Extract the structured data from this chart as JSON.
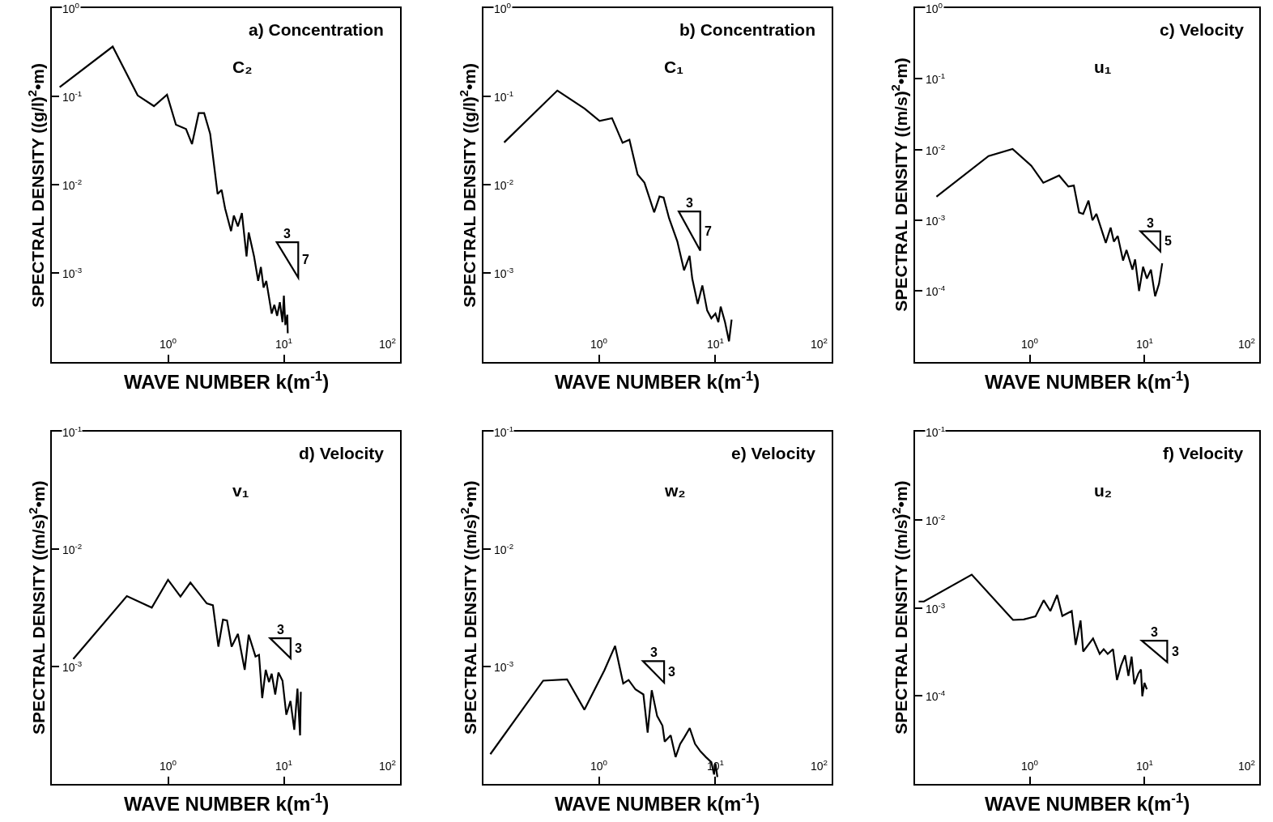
{
  "chart_data": [
    {
      "type": "line",
      "title": "a) Concentration",
      "subtitle": "C₂",
      "xlabel": "WAVE NUMBER k(m$^{-1}$)",
      "ylabel": "SPECTRAL DENSITY ((g/l)$^{2}$•m)",
      "log": "xy",
      "grid": false,
      "annotations": [
        "3",
        "7"
      ],
      "xlim": [
        0.1,
        100
      ],
      "xticks": [
        {
          "value": 1,
          "label": "10$^{0}$"
        },
        {
          "value": 10,
          "label": "10$^{1}$"
        },
        {
          "value": 100,
          "label": "10$^{2}$"
        }
      ],
      "ylim": [
        0.0001,
        1
      ],
      "yticks": [
        {
          "value": 1,
          "label": "10$^{0}$"
        },
        {
          "value": 0.1,
          "label": "10$^{-1}$"
        },
        {
          "value": 0.01,
          "label": "10$^{-2}$"
        },
        {
          "value": 0.001,
          "label": "10$^{-3}$"
        }
      ],
      "series": [
        {
          "color": "#000000",
          "x": [
            0.116,
            0.333,
            0.547,
            0.756,
            0.98,
            1.17,
            1.43,
            1.61,
            1.84,
            2.05,
            2.31,
            2.68,
            2.9,
            3.11,
            3.5,
            3.7,
            4.01,
            4.34,
            4.76,
            4.97,
            5.53,
            6.0,
            6.33,
            6.68,
            7.05,
            7.85,
            8.28,
            8.74,
            9.23,
            9.73,
            10.0,
            10.3,
            10.7,
            10.8
          ],
          "values": [
            0.128,
            0.368,
            0.103,
            0.078,
            0.105,
            0.048,
            0.043,
            0.029,
            0.065,
            0.065,
            0.038,
            0.0079,
            0.0088,
            0.0054,
            0.003,
            0.0045,
            0.0034,
            0.0048,
            0.00155,
            0.0029,
            0.00155,
            0.00082,
            0.00118,
            0.00069,
            0.00082,
            0.00035,
            0.00044,
            0.00033,
            0.00047,
            0.00028,
            0.00056,
            0.00026,
            0.00034,
            0.00021
          ]
        }
      ]
    },
    {
      "type": "line",
      "title": "b) Concentration",
      "subtitle": "C₁",
      "xlabel": "WAVE NUMBER k(m$^{-1}$)",
      "ylabel": "SPECTRAL DENSITY ((g/l)$^{2}$•m)",
      "log": "xy",
      "grid": false,
      "annotations": [
        "3",
        "7"
      ],
      "xlim": [
        0.1,
        100
      ],
      "xticks": [
        {
          "value": 1,
          "label": "10$^{0}$"
        },
        {
          "value": 10,
          "label": "10$^{1}$"
        },
        {
          "value": 100,
          "label": "10$^{2}$"
        }
      ],
      "ylim": [
        0.0001,
        1
      ],
      "yticks": [
        {
          "value": 1,
          "label": "10$^{0}$"
        },
        {
          "value": 0.1,
          "label": "10$^{-1}$"
        },
        {
          "value": 0.01,
          "label": "10$^{-2}$"
        },
        {
          "value": 0.001,
          "label": "10$^{-3}$"
        }
      ],
      "series": [
        {
          "color": "#000000",
          "x": [
            0.15,
            0.432,
            0.743,
            1.0,
            1.28,
            1.58,
            1.81,
            2.13,
            2.44,
            2.96,
            3.29,
            3.57,
            3.98,
            4.69,
            5.36,
            5.98,
            6.31,
            7.03,
            7.71,
            8.49,
            9.22,
            10.0,
            10.6,
            11.1,
            12.1,
            13.1,
            13.8
          ],
          "values": [
            0.0303,
            0.117,
            0.073,
            0.053,
            0.057,
            0.03,
            0.0325,
            0.0131,
            0.0106,
            0.0049,
            0.0074,
            0.0072,
            0.0042,
            0.0023,
            0.00108,
            0.00158,
            0.00087,
            0.00045,
            0.00073,
            0.00038,
            0.00031,
            0.00035,
            0.00028,
            0.00042,
            0.00028,
            0.00017,
            0.0003
          ]
        }
      ]
    },
    {
      "type": "line",
      "title": "c) Velocity",
      "subtitle": "u₁",
      "xlabel": "WAVE NUMBER k(m$^{-1}$)",
      "ylabel": "SPECTRAL DENSITY ((m/s)$^{2}$•m)",
      "log": "xy",
      "grid": false,
      "annotations": [
        "3",
        "5"
      ],
      "xlim": [
        0.1,
        100
      ],
      "xticks": [
        {
          "value": 1,
          "label": "10$^{0}$"
        },
        {
          "value": 10,
          "label": "10$^{1}$"
        },
        {
          "value": 100,
          "label": "10$^{2}$"
        }
      ],
      "ylim": [
        1e-05,
        1
      ],
      "yticks": [
        {
          "value": 1,
          "label": "10$^{0}$"
        },
        {
          "value": 0.1,
          "label": "10$^{-1}$"
        },
        {
          "value": 0.01,
          "label": "10$^{-2}$"
        },
        {
          "value": 0.001,
          "label": "10$^{-3}$"
        },
        {
          "value": 0.0001,
          "label": "10$^{-4}$"
        }
      ],
      "series": [
        {
          "color": "#000000",
          "x": [
            0.153,
            0.436,
            0.706,
            1.03,
            1.31,
            1.8,
            2.17,
            2.42,
            2.69,
            2.92,
            3.25,
            3.52,
            3.81,
            4.6,
            5.07,
            5.41,
            5.85,
            6.51,
            6.98,
            7.86,
            8.29,
            8.98,
            9.73,
            10.5,
            11.4,
            12.4,
            13.4,
            14.3
          ],
          "values": [
            0.00216,
            0.0081,
            0.0102,
            0.0059,
            0.0034,
            0.0043,
            0.003,
            0.0031,
            0.00129,
            0.00123,
            0.0019,
            0.001,
            0.00123,
            0.00048,
            0.00079,
            0.0005,
            0.0006,
            0.00027,
            0.00038,
            0.0002,
            0.00028,
            0.0001,
            0.00022,
            0.00015,
            0.0002,
            8.4e-05,
            0.000126,
            0.000246
          ]
        }
      ]
    },
    {
      "type": "line",
      "title": "d) Velocity",
      "subtitle": "v₁",
      "xlabel": "WAVE NUMBER k(m$^{-1}$)",
      "ylabel": "SPECTRAL DENSITY ((m/s)$^{2}$•m)",
      "log": "xy",
      "grid": false,
      "annotations": [
        "3",
        "3"
      ],
      "xlim": [
        0.1,
        100
      ],
      "xticks": [
        {
          "value": 1,
          "label": "10$^{0}$"
        },
        {
          "value": 10,
          "label": "10$^{1}$"
        },
        {
          "value": 100,
          "label": "10$^{2}$"
        }
      ],
      "ylim": [
        0.0001,
        0.1
      ],
      "yticks": [
        {
          "value": 0.1,
          "label": "10$^{-1}$"
        },
        {
          "value": 0.01,
          "label": "10$^{-2}$"
        },
        {
          "value": 0.001,
          "label": "10$^{-3}$"
        }
      ],
      "series": [
        {
          "color": "#000000",
          "x": [
            0.152,
            0.441,
            0.724,
            1.0,
            1.28,
            1.56,
            2.16,
            2.44,
            2.72,
            2.98,
            3.23,
            3.54,
            4.01,
            4.59,
            4.97,
            5.69,
            6.1,
            6.5,
            6.97,
            7.44,
            7.85,
            8.42,
            8.98,
            9.73,
            10.5,
            11.4,
            12.3,
            13.1,
            13.8,
            14.0
          ],
          "values": [
            0.00116,
            0.00398,
            0.00318,
            0.00548,
            0.00394,
            0.0052,
            0.00345,
            0.00333,
            0.00148,
            0.00251,
            0.00247,
            0.00148,
            0.0019,
            0.00094,
            0.00187,
            0.00122,
            0.00126,
            0.00054,
            0.00094,
            0.00074,
            0.00087,
            0.00058,
            0.00089,
            0.00076,
            0.00039,
            0.00051,
            0.00029,
            0.00065,
            0.00026,
            0.00061
          ]
        }
      ]
    },
    {
      "type": "line",
      "title": "e) Velocity",
      "subtitle": "w₂",
      "xlabel": "WAVE NUMBER k(m$^{-1}$)",
      "ylabel": "SPECTRAL DENSITY ((m/s)$^{2}$•m)",
      "log": "xy",
      "grid": false,
      "annotations": [
        "3",
        "3"
      ],
      "xlim": [
        0.1,
        100
      ],
      "xticks": [
        {
          "value": 1,
          "label": "10$^{0}$"
        },
        {
          "value": 10,
          "label": "10$^{1}$"
        },
        {
          "value": 100,
          "label": "10$^{2}$"
        }
      ],
      "ylim": [
        0.0001,
        0.1
      ],
      "yticks": [
        {
          "value": 0.1,
          "label": "10$^{-1}$"
        },
        {
          "value": 0.01,
          "label": "10$^{-2}$"
        },
        {
          "value": 0.001,
          "label": "10$^{-3}$"
        }
      ],
      "series": [
        {
          "color": "#000000",
          "x": [
            0.114,
            0.326,
            0.524,
            0.74,
            1.1,
            1.36,
            1.6,
            1.78,
            2.04,
            2.39,
            2.6,
            2.82,
            3.14,
            3.49,
            3.65,
            4.11,
            4.53,
            4.96,
            5.38,
            6.0,
            6.67,
            7.43,
            8.28,
            9.22,
            9.73,
            10.0,
            10.4
          ],
          "values": [
            0.00018,
            0.00076,
            0.00078,
            0.00043,
            0.00093,
            0.0015,
            0.00072,
            0.00077,
            0.00064,
            0.00058,
            0.000275,
            0.00063,
            0.00038,
            0.000315,
            0.00023,
            0.00026,
            0.00017,
            0.00022,
            0.00025,
            0.0003,
            0.00022,
            0.00019,
            0.00017,
            0.000154,
            0.000121,
            0.00015,
            0.000115
          ]
        }
      ]
    },
    {
      "type": "line",
      "title": "f) Velocity",
      "subtitle": "u₂",
      "xlabel": "WAVE NUMBER k(m$^{-1}$)",
      "ylabel": "SPECTRAL DENSITY ((m/s)$^{2}$•m)",
      "log": "xy",
      "grid": false,
      "annotations": [
        "3",
        "3"
      ],
      "xlim": [
        0.1,
        100
      ],
      "xticks": [
        {
          "value": 1,
          "label": "10$^{0}$"
        },
        {
          "value": 10,
          "label": "10$^{1}$"
        },
        {
          "value": 100,
          "label": "10$^{2}$"
        }
      ],
      "ylim": [
        1e-05,
        0.1
      ],
      "yticks": [
        {
          "value": 0.1,
          "label": "10$^{-1}$"
        },
        {
          "value": 0.01,
          "label": "10$^{-2}$"
        },
        {
          "value": 0.001,
          "label": "10$^{-3}$"
        },
        {
          "value": 0.0001,
          "label": "10$^{-4}$"
        }
      ],
      "series": [
        {
          "color": "#000000",
          "x": [
            0.107,
            0.119,
            0.311,
            0.713,
            0.885,
            1.12,
            1.32,
            1.51,
            1.73,
            1.92,
            2.32,
            2.51,
            2.77,
            2.92,
            3.56,
            4.07,
            4.41,
            4.78,
            5.32,
            5.76,
            6.24,
            6.77,
            7.25,
            7.73,
            8.16,
            8.85,
            9.33,
            9.58,
            10.0,
            10.5
          ],
          "values": [
            0.00118,
            0.00118,
            0.00238,
            0.00073,
            0.00074,
            0.0008,
            0.00122,
            0.00092,
            0.0014,
            0.00081,
            0.00092,
            0.00038,
            0.00072,
            0.00032,
            0.00045,
            0.0003,
            0.00034,
            0.0003,
            0.00034,
            0.000152,
            0.00022,
            0.00029,
            0.000169,
            0.00028,
            0.000136,
            0.00018,
            0.0002,
            9.93e-05,
            0.000141,
            0.000119
          ]
        }
      ]
    }
  ]
}
